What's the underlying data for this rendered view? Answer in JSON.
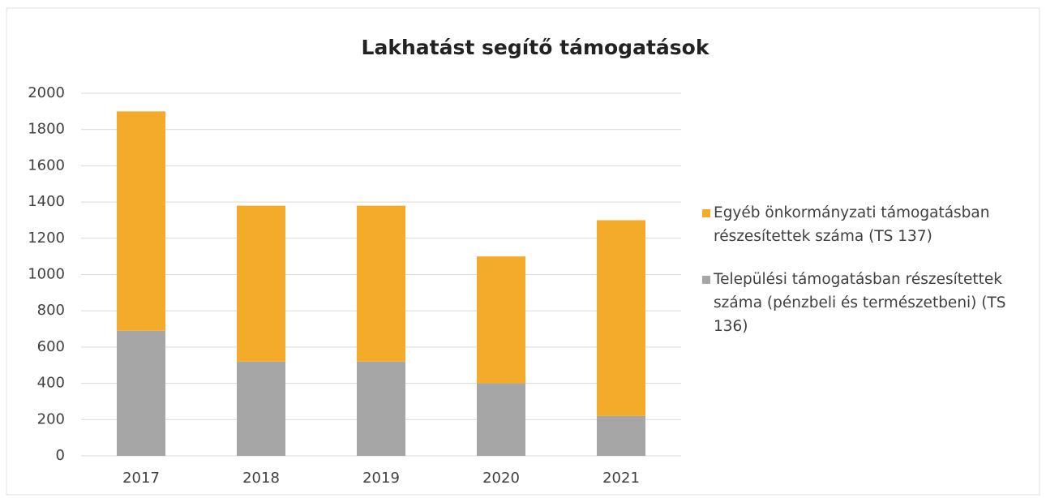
{
  "chart_data": {
    "type": "stacked_bar",
    "title": "Lakhatást segítő támogatások",
    "categories": [
      "2017",
      "2018",
      "2019",
      "2020",
      "2021"
    ],
    "series": [
      {
        "name": "Települési támogatásban részesítettek száma (pénzbeli és természetbeni) (TS 136)",
        "color": "#a6a6a6",
        "values": [
          690,
          520,
          520,
          400,
          220
        ]
      },
      {
        "name": "Egyéb önkormányzati támogatásban részesítettek száma (TS 137)",
        "color": "#f5ab2a",
        "values": [
          1210,
          860,
          860,
          700,
          1080
        ]
      }
    ],
    "ylim": [
      0,
      2000
    ],
    "yticks": [
      0,
      200,
      400,
      600,
      800,
      1000,
      1200,
      1400,
      1600,
      1800,
      2000
    ],
    "grid": true,
    "legend": "right"
  }
}
